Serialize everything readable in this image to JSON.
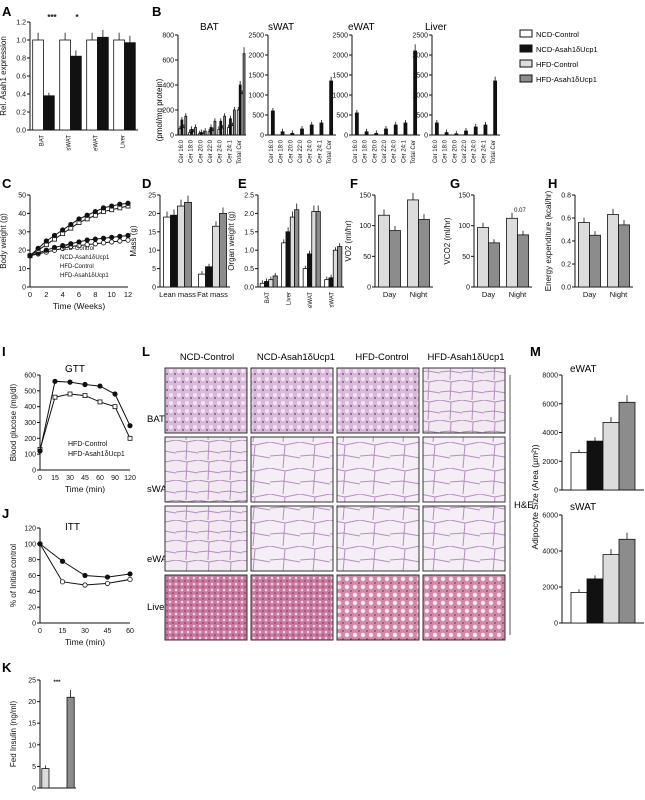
{
  "legend_main": [
    {
      "label": "NCD-Control",
      "fill": "#ffffff"
    },
    {
      "label": "NCD-Asah1δUcp1",
      "fill": "#111111"
    },
    {
      "label": "HFD-Control",
      "fill": "#dcdcdc"
    },
    {
      "label": "HFD-Asah1δUcp1",
      "fill": "#8c8c8c"
    }
  ],
  "colors": {
    "ncd_ctrl": "#ffffff",
    "ncd_ko": "#111111",
    "hfd_ctrl": "#dcdcdc",
    "hfd_ko": "#8c8c8c",
    "stroke": "#111111"
  },
  "panels": {
    "A": {
      "letter": "A",
      "ylabel": "Rel. Asah1 expression",
      "ylim": [
        0,
        1.2
      ],
      "ticks": [
        "0.0",
        "0.2",
        "0.4",
        "0.6",
        "0.8",
        "1.0",
        "1.2"
      ],
      "categories": [
        "BAT",
        "sWAT",
        "eWAT",
        "Liver"
      ],
      "sig": [
        "***",
        "*"
      ]
    },
    "B": {
      "letter": "B",
      "ylabel": "(pmol/mg protein)",
      "categories": [
        "Cer 16:0",
        "Cer 18:0",
        "Cer 20:0",
        "Cer 22:0",
        "Cer 24:0",
        "Cer 24:1",
        "Total Cer"
      ],
      "titles": [
        "BAT",
        "sWAT",
        "eWAT",
        "Liver"
      ],
      "ticks_bat": [
        "0",
        "200",
        "400",
        "600",
        "800"
      ],
      "ticks_other": [
        "0",
        "500",
        "1000",
        "1500",
        "2000",
        "2500"
      ]
    },
    "C": {
      "letter": "C",
      "ylabel": "Body weight (g)",
      "xlabel": "Time (Weeks)",
      "xticks": [
        "0",
        "2",
        "4",
        "6",
        "8",
        "10",
        "12"
      ],
      "yticks": [
        "0",
        "10",
        "20",
        "30",
        "40",
        "50"
      ],
      "legend": [
        "NCD-Control",
        "NCD-Asah1δUcp1",
        "HFD-Control",
        "HFD-Asah1δUcp1"
      ]
    },
    "D": {
      "letter": "D",
      "ylabel": "Mass (g)",
      "categories": [
        "Lean mass",
        "Fat mass"
      ],
      "yticks": [
        "0",
        "5",
        "10",
        "15",
        "20",
        "25"
      ]
    },
    "E": {
      "letter": "E",
      "ylabel": "Organ weight (g)",
      "categories": [
        "BAT",
        "Liver",
        "eWAT",
        "sWAT"
      ],
      "yticks": [
        "0.0",
        "0.5",
        "1.0",
        "1.5",
        "2.0",
        "2.5"
      ]
    },
    "F": {
      "letter": "F",
      "ylabel": "VO2 (ml/hr)",
      "categories": [
        "Day",
        "Night"
      ],
      "yticks": [
        "0",
        "50",
        "100",
        "150"
      ]
    },
    "G": {
      "letter": "G",
      "ylabel": "VCO2 (ml/hr)",
      "categories": [
        "Day",
        "Night"
      ],
      "yticks": [
        "0",
        "50",
        "100",
        "150"
      ],
      "sig_note": "0.07"
    },
    "H": {
      "letter": "H",
      "ylabel": "Energy expenditure (kcal/hr)",
      "categories": [
        "Day",
        "Night"
      ],
      "yticks": [
        "0.0",
        "0.2",
        "0.4",
        "0.6",
        "0.8"
      ]
    },
    "I": {
      "letter": "I",
      "title": "GTT",
      "ylabel": "Blood glucose (mg/dl)",
      "xlabel": "Time (min)",
      "xticks": [
        "0",
        "15",
        "30",
        "45",
        "60",
        "90",
        "120"
      ],
      "yticks": [
        "0",
        "100",
        "200",
        "300",
        "400",
        "500",
        "600"
      ],
      "legend": [
        "HFD-Control",
        "HFD-Asah1δUcp1"
      ]
    },
    "J": {
      "letter": "J",
      "title": "ITT",
      "ylabel": "% of Initial control",
      "xlabel": "Time (min)",
      "xticks": [
        "0",
        "15",
        "30",
        "45",
        "60"
      ],
      "yticks": [
        "0",
        "20",
        "40",
        "60",
        "80",
        "100",
        "120"
      ]
    },
    "K": {
      "letter": "K",
      "ylabel": "Fed Insulin (ng/ml)",
      "yticks": [
        "0",
        "5",
        "10",
        "15",
        "20",
        "25"
      ],
      "sig": "***"
    },
    "L": {
      "letter": "L",
      "columns": [
        "NCD-Control",
        "NCD-Asah1δUcp1",
        "HFD-Control",
        "HFD-Asah1δUcp1"
      ],
      "rows": [
        "BAT",
        "sWAT",
        "eWAT",
        "Liver"
      ],
      "stain": "H&E"
    },
    "M": {
      "letter": "M",
      "ylabel": "Adipocyte Size (Area (µm²))",
      "titles": [
        "eWAT",
        "sWAT"
      ],
      "yticks": [
        "0",
        "2000",
        "4000",
        "6000",
        "8000"
      ]
    }
  },
  "chart_data": [
    {
      "type": "bar",
      "panel": "A",
      "categories": [
        "BAT",
        "sWAT",
        "eWAT",
        "Liver"
      ],
      "series": [
        {
          "name": "NCD-Control",
          "values": [
            1.0,
            1.0,
            1.0,
            1.0
          ]
        },
        {
          "name": "NCD-Asah1δUcp1",
          "values": [
            0.38,
            0.82,
            1.03,
            0.97
          ]
        }
      ],
      "ylim": [
        0,
        1.2
      ]
    },
    {
      "type": "bar",
      "panel": "B-BAT",
      "categories": [
        "Cer 16:0",
        "Cer 18:0",
        "Cer 20:0",
        "Cer 22:0",
        "Cer 24:0",
        "Cer 24:1",
        "Total Cer"
      ],
      "series": [
        {
          "name": "NCD-Control",
          "values": [
            50,
            20,
            10,
            25,
            45,
            60,
            200
          ]
        },
        {
          "name": "NCD-Asah1δUcp1",
          "values": [
            120,
            45,
            20,
            60,
            110,
            130,
            400
          ]
        },
        {
          "name": "HFD-Control",
          "values": [
            60,
            25,
            12,
            35,
            55,
            75,
            330
          ]
        },
        {
          "name": "HFD-Asah1δUcp1",
          "values": [
            150,
            60,
            30,
            110,
            150,
            200,
            650
          ]
        }
      ],
      "ylim": [
        0,
        800
      ]
    },
    {
      "type": "bar",
      "panel": "B-sWAT",
      "categories": [
        "Cer 16:0",
        "Cer 18:0",
        "Cer 20:0",
        "Cer 22:0",
        "Cer 24:0",
        "Cer 24:1",
        "Total Cer"
      ],
      "series": [
        {
          "name": "NCD-Asah1δUcp1",
          "values": [
            600,
            80,
            40,
            150,
            250,
            300,
            1350
          ]
        }
      ],
      "ylim": [
        0,
        2500
      ]
    },
    {
      "type": "bar",
      "panel": "B-eWAT",
      "categories": [
        "Cer 16:0",
        "Cer 18:0",
        "Cer 20:0",
        "Cer 22:0",
        "Cer 24:0",
        "Cer 24:1",
        "Total Cer"
      ],
      "series": [
        {
          "name": "NCD-Asah1δUcp1",
          "values": [
            550,
            80,
            40,
            150,
            250,
            300,
            2100
          ]
        }
      ],
      "ylim": [
        0,
        2500
      ]
    },
    {
      "type": "bar",
      "panel": "B-Liver",
      "categories": [
        "Cer 16:0",
        "Cer 18:0",
        "Cer 20:0",
        "Cer 22:0",
        "Cer 24:0",
        "Cer 24:1",
        "Total Cer"
      ],
      "series": [
        {
          "name": "NCD-Asah1δUcp1",
          "values": [
            300,
            60,
            30,
            100,
            200,
            250,
            1350
          ]
        }
      ],
      "ylim": [
        0,
        2500
      ]
    },
    {
      "type": "line",
      "panel": "C",
      "x": [
        0,
        1,
        2,
        3,
        4,
        5,
        6,
        7,
        8,
        9,
        10,
        11,
        12
      ],
      "series": [
        {
          "name": "NCD-Control",
          "values": [
            17,
            18,
            19,
            20,
            21,
            22,
            22.5,
            23,
            23.5,
            24,
            24.5,
            25,
            25.5
          ]
        },
        {
          "name": "NCD-Asah1δUcp1",
          "values": [
            17,
            18.5,
            20,
            21.5,
            22.5,
            23.5,
            24.5,
            25.5,
            26,
            26.5,
            27,
            27.5,
            28
          ]
        },
        {
          "name": "HFD-Control",
          "values": [
            17,
            20,
            23,
            26,
            29,
            32,
            35,
            37,
            39,
            41,
            42,
            43,
            44
          ]
        },
        {
          "name": "HFD-Asah1δUcp1",
          "values": [
            17,
            21,
            25,
            28,
            31,
            34,
            37,
            39,
            41,
            43,
            44,
            45,
            45.5
          ]
        }
      ],
      "ylim": [
        0,
        50
      ]
    },
    {
      "type": "bar",
      "panel": "D",
      "categories": [
        "Lean mass",
        "Fat mass"
      ],
      "series": [
        {
          "name": "NCD-Control",
          "values": [
            19,
            3.5
          ]
        },
        {
          "name": "NCD-Asah1δUcp1",
          "values": [
            19.5,
            5.5
          ]
        },
        {
          "name": "HFD-Control",
          "values": [
            22,
            16.5
          ]
        },
        {
          "name": "HFD-Asah1δUcp1",
          "values": [
            23,
            20
          ]
        }
      ],
      "ylim": [
        0,
        25
      ]
    },
    {
      "type": "bar",
      "panel": "E",
      "categories": [
        "BAT",
        "Liver",
        "eWAT",
        "sWAT"
      ],
      "series": [
        {
          "name": "NCD-Control",
          "values": [
            0.1,
            1.2,
            0.5,
            0.2
          ]
        },
        {
          "name": "NCD-Asah1δUcp1",
          "values": [
            0.15,
            1.5,
            0.9,
            0.25
          ]
        },
        {
          "name": "HFD-Control",
          "values": [
            0.2,
            1.9,
            2.05,
            1.0
          ]
        },
        {
          "name": "HFD-Asah1δUcp1",
          "values": [
            0.3,
            2.1,
            2.05,
            1.1
          ]
        }
      ],
      "ylim": [
        0,
        2.5
      ]
    },
    {
      "type": "bar",
      "panel": "F",
      "categories": [
        "Day",
        "Night"
      ],
      "series": [
        {
          "name": "HFD-Control",
          "values": [
            117,
            142
          ]
        },
        {
          "name": "HFD-Asah1δUcp1",
          "values": [
            92,
            110
          ]
        }
      ],
      "ylim": [
        0,
        150
      ]
    },
    {
      "type": "bar",
      "panel": "G",
      "categories": [
        "Day",
        "Night"
      ],
      "series": [
        {
          "name": "HFD-Control",
          "values": [
            97,
            112
          ]
        },
        {
          "name": "HFD-Asah1δUcp1",
          "values": [
            72,
            85
          ]
        }
      ],
      "ylim": [
        0,
        150
      ]
    },
    {
      "type": "bar",
      "panel": "H",
      "categories": [
        "Day",
        "Night"
      ],
      "series": [
        {
          "name": "HFD-Control",
          "values": [
            0.56,
            0.63
          ]
        },
        {
          "name": "HFD-Asah1δUcp1",
          "values": [
            0.45,
            0.54
          ]
        }
      ],
      "ylim": [
        0,
        0.8
      ]
    },
    {
      "type": "line",
      "panel": "I",
      "x": [
        0,
        15,
        30,
        45,
        60,
        90,
        120
      ],
      "series": [
        {
          "name": "HFD-Control",
          "values": [
            130,
            460,
            480,
            470,
            430,
            400,
            200
          ]
        },
        {
          "name": "HFD-Asah1δUcp1",
          "values": [
            120,
            560,
            555,
            540,
            530,
            480,
            280
          ]
        }
      ],
      "ylim": [
        0,
        600
      ]
    },
    {
      "type": "line",
      "panel": "J",
      "x": [
        0,
        15,
        30,
        45,
        60
      ],
      "series": [
        {
          "name": "HFD-Control",
          "values": [
            100,
            52,
            48,
            50,
            55
          ]
        },
        {
          "name": "HFD-Asah1δUcp1",
          "values": [
            100,
            78,
            60,
            58,
            62
          ]
        }
      ],
      "ylim": [
        0,
        120
      ]
    },
    {
      "type": "bar",
      "panel": "K",
      "categories": [
        "HFD-Control",
        "HFD-Asah1δUcp1"
      ],
      "values": [
        4.5,
        21
      ],
      "ylim": [
        0,
        25
      ]
    },
    {
      "type": "bar",
      "panel": "M-eWAT",
      "categories": [
        "NCD-Control",
        "NCD-Asah1δUcp1",
        "HFD-Control",
        "HFD-Asah1δUcp1"
      ],
      "values": [
        2600,
        3400,
        4700,
        6100
      ],
      "ylim": [
        0,
        8000
      ]
    },
    {
      "type": "bar",
      "panel": "M-sWAT",
      "categories": [
        "NCD-Control",
        "NCD-Asah1δUcp1",
        "HFD-Control",
        "HFD-Asah1δUcp1"
      ],
      "values": [
        1700,
        2450,
        3800,
        4650
      ],
      "ylim": [
        0,
        6000
      ]
    }
  ]
}
